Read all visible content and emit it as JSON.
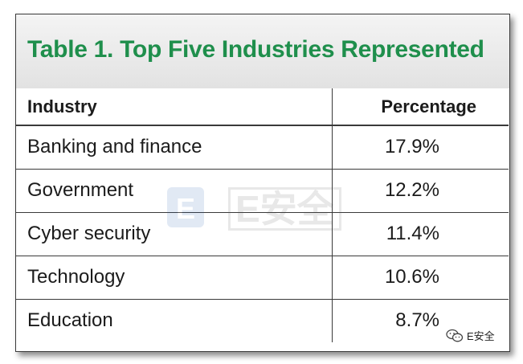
{
  "table": {
    "title": "Table 1. Top Five Industries Represented",
    "columns": [
      "Industry",
      "Percentage"
    ],
    "rows": [
      {
        "industry": "Banking and finance",
        "percentage": "17.9%"
      },
      {
        "industry": "Government",
        "percentage": "12.2%"
      },
      {
        "industry": "Cyber security",
        "percentage": "11.4%"
      },
      {
        "industry": "Technology",
        "percentage": "10.6%"
      },
      {
        "industry": "Education",
        "percentage": "8.7%"
      }
    ]
  },
  "watermark": {
    "logo_letter": "E",
    "text": "E安全"
  },
  "badge": {
    "icon": "wechat-icon",
    "text": "E安全"
  },
  "colors": {
    "title": "#1f8f4c",
    "border": "#3a3a3a"
  }
}
